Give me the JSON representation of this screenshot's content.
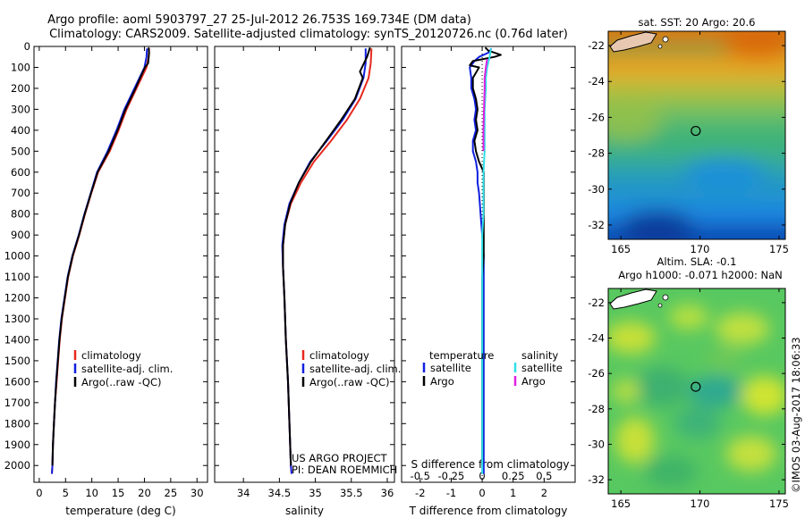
{
  "header": {
    "line1": "Argo profile: aoml 5903797_27 25-Jul-2012 26.753S 169.734E (DM data)",
    "line2": "Climatology: CARS2009. Satellite-adjusted climatology: synTS_20120726.nc (0.76d later)"
  },
  "credits": {
    "project": "US ARGO PROJECT",
    "pi": "PI: DEAN ROEMMICH",
    "stamp": "©IMOS 03-Aug-2017 18:06:33"
  },
  "colors": {
    "climatology": "#e8281e",
    "satellite": "#1020e0",
    "argo": "#000000",
    "sal_satellite": "#30e0e8",
    "sal_argo": "#e020e0"
  },
  "chart_data": [
    {
      "type": "line",
      "id": "temperature",
      "xlabel": "temperature (deg C)",
      "ylabel": "",
      "xlim": [
        -1,
        32
      ],
      "ylim": [
        2080,
        0
      ],
      "xticks": [
        0,
        5,
        10,
        15,
        20,
        25,
        30
      ],
      "yticks": [
        0,
        100,
        200,
        300,
        400,
        500,
        600,
        700,
        800,
        900,
        1000,
        1100,
        1200,
        1300,
        1400,
        1500,
        1600,
        1700,
        1800,
        1900,
        2000
      ],
      "legend": [
        "climatology",
        "satellite-adj. clim.",
        "Argo(..raw -QC)"
      ],
      "series": [
        {
          "name": "climatology",
          "color_key": "climatology",
          "points": [
            [
              20.9,
              10
            ],
            [
              20.8,
              50
            ],
            [
              20.4,
              100
            ],
            [
              18.5,
              200
            ],
            [
              16.6,
              300
            ],
            [
              15.1,
              400
            ],
            [
              13.4,
              500
            ],
            [
              11.2,
              600
            ],
            [
              9.9,
              700
            ],
            [
              8.7,
              800
            ],
            [
              7.6,
              900
            ],
            [
              6.4,
              1000
            ],
            [
              5.5,
              1100
            ],
            [
              4.9,
              1200
            ],
            [
              4.3,
              1300
            ],
            [
              3.9,
              1400
            ],
            [
              3.6,
              1500
            ],
            [
              3.3,
              1600
            ],
            [
              3.0,
              1700
            ],
            [
              2.8,
              1800
            ],
            [
              2.6,
              1900
            ],
            [
              2.5,
              2000
            ],
            [
              2.4,
              2040
            ]
          ]
        },
        {
          "name": "satellite-adj. clim.",
          "color_key": "satellite",
          "points": [
            [
              20.5,
              10
            ],
            [
              20.4,
              50
            ],
            [
              20.0,
              100
            ],
            [
              18.1,
              200
            ],
            [
              16.2,
              300
            ],
            [
              14.7,
              400
            ],
            [
              13.0,
              500
            ],
            [
              11.0,
              600
            ],
            [
              9.8,
              700
            ],
            [
              8.6,
              800
            ],
            [
              7.5,
              900
            ],
            [
              6.3,
              1000
            ],
            [
              5.4,
              1100
            ],
            [
              4.8,
              1200
            ],
            [
              4.2,
              1300
            ],
            [
              3.8,
              1400
            ],
            [
              3.5,
              1500
            ],
            [
              3.2,
              1600
            ],
            [
              3.0,
              1700
            ],
            [
              2.8,
              1800
            ],
            [
              2.6,
              1900
            ],
            [
              2.5,
              2000
            ],
            [
              2.4,
              2040
            ]
          ]
        },
        {
          "name": "Argo(..raw -QC)",
          "color_key": "argo",
          "points": [
            [
              20.8,
              5
            ],
            [
              20.9,
              30
            ],
            [
              20.7,
              80
            ],
            [
              20.1,
              100
            ],
            [
              18.3,
              200
            ],
            [
              16.4,
              300
            ],
            [
              14.9,
              400
            ],
            [
              13.2,
              500
            ],
            [
              11.1,
              600
            ],
            [
              9.85,
              700
            ],
            [
              8.65,
              800
            ],
            [
              7.55,
              900
            ],
            [
              6.35,
              1000
            ],
            [
              5.45,
              1100
            ],
            [
              4.85,
              1200
            ],
            [
              4.25,
              1300
            ],
            [
              3.85,
              1400
            ],
            [
              3.55,
              1500
            ],
            [
              3.25,
              1600
            ],
            [
              3.0,
              1700
            ],
            [
              2.8,
              1800
            ],
            [
              2.6,
              1900
            ],
            [
              2.5,
              2000
            ]
          ]
        }
      ]
    },
    {
      "type": "line",
      "id": "salinity",
      "xlabel": "salinity",
      "ylabel": "",
      "xlim": [
        33.6,
        36.1
      ],
      "ylim": [
        2080,
        0
      ],
      "xticks": [
        34,
        34.5,
        35,
        35.5,
        36
      ],
      "legend": [
        "climatology",
        "satellite-adj. clim.",
        "Argo(..raw -QC)"
      ],
      "series": [
        {
          "name": "climatology",
          "color_key": "climatology",
          "points": [
            [
              35.78,
              10
            ],
            [
              35.77,
              80
            ],
            [
              35.74,
              150
            ],
            [
              35.62,
              250
            ],
            [
              35.44,
              350
            ],
            [
              35.22,
              450
            ],
            [
              34.98,
              550
            ],
            [
              34.8,
              650
            ],
            [
              34.66,
              750
            ],
            [
              34.58,
              850
            ],
            [
              34.55,
              950
            ],
            [
              34.55,
              1050
            ],
            [
              34.57,
              1200
            ],
            [
              34.59,
              1400
            ],
            [
              34.62,
              1600
            ],
            [
              34.64,
              1800
            ],
            [
              34.66,
              2000
            ],
            [
              34.67,
              2040
            ]
          ]
        },
        {
          "name": "satellite-adj. clim.",
          "color_key": "satellite",
          "points": [
            [
              35.7,
              10
            ],
            [
              35.7,
              80
            ],
            [
              35.67,
              150
            ],
            [
              35.56,
              250
            ],
            [
              35.38,
              350
            ],
            [
              35.16,
              450
            ],
            [
              34.93,
              550
            ],
            [
              34.77,
              650
            ],
            [
              34.64,
              750
            ],
            [
              34.57,
              850
            ],
            [
              34.54,
              950
            ],
            [
              34.55,
              1050
            ],
            [
              34.57,
              1200
            ],
            [
              34.59,
              1400
            ],
            [
              34.62,
              1600
            ],
            [
              34.64,
              1800
            ],
            [
              34.66,
              2000
            ],
            [
              34.67,
              2040
            ]
          ]
        },
        {
          "name": "Argo(..raw -QC)",
          "color_key": "argo",
          "points": [
            [
              35.76,
              5
            ],
            [
              35.72,
              50
            ],
            [
              35.62,
              120
            ],
            [
              35.66,
              150
            ],
            [
              35.55,
              250
            ],
            [
              35.36,
              350
            ],
            [
              35.15,
              450
            ],
            [
              34.94,
              550
            ],
            [
              34.77,
              650
            ],
            [
              34.65,
              750
            ],
            [
              34.58,
              850
            ],
            [
              34.55,
              950
            ],
            [
              34.55,
              1050
            ],
            [
              34.57,
              1200
            ],
            [
              34.59,
              1400
            ],
            [
              34.62,
              1600
            ],
            [
              34.64,
              1800
            ],
            [
              34.66,
              2000
            ]
          ]
        }
      ]
    },
    {
      "type": "line",
      "id": "difference",
      "xlabel": "T difference from climatology",
      "sublabel": "S difference from climatology",
      "xlim": [
        -2.6,
        3.0
      ],
      "ylim": [
        2080,
        0
      ],
      "xticks": [
        -2,
        -1,
        0,
        1,
        2
      ],
      "sxticks": [
        -0.5,
        -0.25,
        0,
        0.25,
        0.5
      ],
      "sxticklabels": [
        "-0.5",
        "-0.25",
        "0",
        "0.25",
        "0.5"
      ],
      "legend_titles": [
        "temperature",
        "salinity"
      ],
      "legend": [
        "satellite",
        "Argo",
        "satellite",
        "Argo"
      ],
      "series": [
        {
          "name": "satellite",
          "group": "temperature",
          "color_key": "satellite",
          "points": [
            [
              0.3,
              10
            ],
            [
              0.2,
              30
            ],
            [
              -0.1,
              50
            ],
            [
              -0.25,
              70
            ],
            [
              -0.4,
              100
            ],
            [
              -0.35,
              150
            ],
            [
              -0.35,
              200
            ],
            [
              -0.25,
              250
            ],
            [
              -0.2,
              300
            ],
            [
              -0.25,
              350
            ],
            [
              -0.2,
              400
            ],
            [
              -0.3,
              450
            ],
            [
              -0.3,
              500
            ],
            [
              -0.2,
              550
            ],
            [
              -0.15,
              600
            ],
            [
              -0.15,
              650
            ],
            [
              -0.1,
              700
            ],
            [
              -0.05,
              800
            ],
            [
              0.0,
              900
            ],
            [
              0.05,
              1000
            ],
            [
              0.05,
              1100
            ],
            [
              0.05,
              1200
            ],
            [
              0.05,
              1300
            ],
            [
              0.05,
              1400
            ],
            [
              0.05,
              1500
            ],
            [
              0.05,
              1600
            ],
            [
              0.05,
              1700
            ],
            [
              0.05,
              1800
            ],
            [
              0.05,
              1900
            ],
            [
              0.05,
              2040
            ]
          ]
        },
        {
          "name": "Argo",
          "group": "temperature",
          "color_key": "argo",
          "points": [
            [
              0.1,
              5
            ],
            [
              0.2,
              20
            ],
            [
              0.6,
              40
            ],
            [
              0.4,
              50
            ],
            [
              -0.3,
              70
            ],
            [
              -0.4,
              90
            ],
            [
              -0.1,
              100
            ],
            [
              -0.3,
              150
            ],
            [
              -0.3,
              200
            ],
            [
              -0.2,
              250
            ],
            [
              -0.15,
              300
            ],
            [
              -0.2,
              350
            ],
            [
              -0.15,
              400
            ],
            [
              -0.25,
              450
            ],
            [
              -0.2,
              500
            ],
            [
              -0.1,
              550
            ],
            [
              0.05,
              600
            ],
            [
              0.05,
              650
            ],
            [
              0.05,
              700
            ],
            [
              0.05,
              800
            ],
            [
              0.05,
              900
            ],
            [
              0.05,
              1000
            ],
            [
              0.0,
              1100
            ],
            [
              0.0,
              1200
            ],
            [
              0.0,
              1300
            ],
            [
              0.0,
              1400
            ],
            [
              0.0,
              1500
            ],
            [
              0.0,
              1600
            ],
            [
              0.0,
              1700
            ],
            [
              0.0,
              1800
            ],
            [
              0.0,
              1900
            ],
            [
              0.0,
              2000
            ]
          ]
        },
        {
          "name": "satellite",
          "group": "salinity",
          "color_key": "sal_satellite",
          "points": [
            [
              0.07,
              10
            ],
            [
              0.06,
              50
            ],
            [
              0.04,
              100
            ],
            [
              0.03,
              150
            ],
            [
              0.03,
              200
            ],
            [
              0.02,
              300
            ],
            [
              0.02,
              400
            ],
            [
              0.02,
              500
            ],
            [
              0.01,
              600
            ],
            [
              0.01,
              700
            ],
            [
              0.01,
              800
            ],
            [
              0.0,
              900
            ],
            [
              0.0,
              1000
            ],
            [
              0.0,
              1200
            ],
            [
              0.0,
              1400
            ],
            [
              0.0,
              1600
            ],
            [
              0.0,
              1800
            ],
            [
              0.0,
              2000
            ],
            [
              0.0,
              2040
            ]
          ]
        },
        {
          "name": "Argo",
          "group": "salinity",
          "color_key": "sal_argo",
          "points": [
            [
              0.04,
              60
            ],
            [
              0.03,
              100
            ],
            [
              0.02,
              150
            ],
            [
              0.02,
              200
            ],
            [
              0.015,
              300
            ],
            [
              0.01,
              400
            ],
            [
              0.01,
              500
            ]
          ]
        }
      ]
    },
    {
      "type": "heatmap",
      "id": "sst_map",
      "title": "sat. SST: 20 Argo: 20.6",
      "xlim": [
        164.2,
        175.4
      ],
      "ylim": [
        -32.8,
        -21.2
      ],
      "xticks": [
        165,
        170,
        175
      ],
      "yticks": [
        -22,
        -24,
        -26,
        -28,
        -30,
        -32
      ],
      "marker": [
        169.734,
        -26.753
      ]
    },
    {
      "type": "heatmap",
      "id": "sla_map",
      "title": "Altim. SLA: -0.1",
      "subtitle": "Argo h1000: -0.071 h2000: NaN",
      "xlim": [
        164.2,
        175.4
      ],
      "ylim": [
        -32.8,
        -21.2
      ],
      "xticks": [
        165,
        170,
        175
      ],
      "yticks": [
        -22,
        -24,
        -26,
        -28,
        -30,
        -32
      ],
      "marker": [
        169.734,
        -26.753
      ]
    }
  ]
}
